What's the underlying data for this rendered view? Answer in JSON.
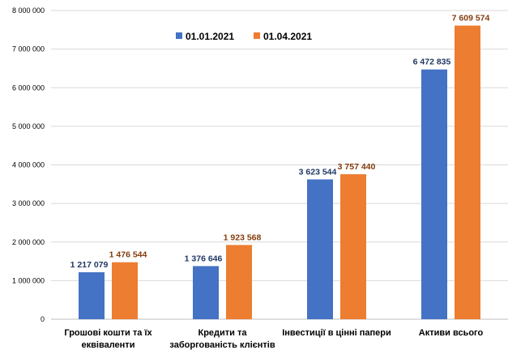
{
  "chart_data": {
    "type": "bar",
    "title": "",
    "xlabel": "",
    "ylabel": "",
    "categories": [
      [
        "Грошові кошти та їх",
        "еквіваленти"
      ],
      [
        "Кредити та",
        "заборгованість клієнтів"
      ],
      [
        "Інвестиції в цінні папери"
      ],
      [
        "Активи всього"
      ]
    ],
    "series": [
      {
        "name": "01.01.2021",
        "color": "#4472C4",
        "label_color": "#203864",
        "values": [
          1217079,
          1376646,
          3623544,
          6472835
        ],
        "value_labels": [
          "1 217 079",
          "1 376 646",
          "3 623 544",
          "6 472 835"
        ]
      },
      {
        "name": "01.04.2021",
        "color": "#ED7D31",
        "label_color": "#843C0C",
        "values": [
          1476544,
          1923568,
          3757440,
          7609574
        ],
        "value_labels": [
          "1 476 544",
          "1 923 568",
          "3 757 440",
          "7 609 574"
        ]
      }
    ],
    "ylim": [
      0,
      8000000
    ],
    "yticks": [
      0,
      1000000,
      2000000,
      3000000,
      4000000,
      5000000,
      6000000,
      7000000,
      8000000
    ],
    "ytick_labels": [
      "0",
      "1 000 000",
      "2 000 000",
      "3 000 000",
      "4 000 000",
      "5 000 000",
      "6 000 000",
      "7 000 000",
      "8 000 000"
    ],
    "grid": true,
    "legend_position": "top-center"
  }
}
